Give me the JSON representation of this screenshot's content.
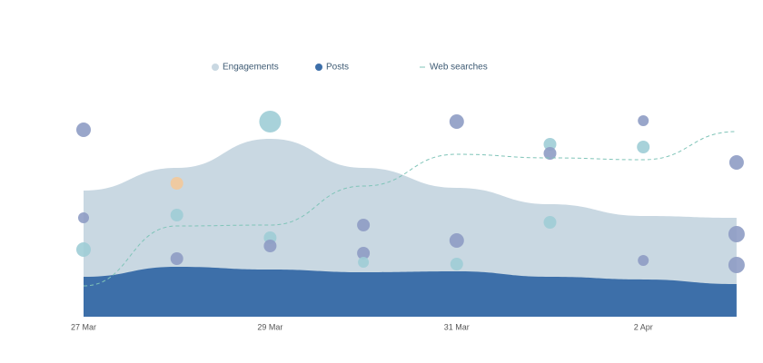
{
  "chart_data": {
    "type": "area",
    "categories": [
      "27 Mar",
      null,
      "29 Mar",
      null,
      "31 Mar",
      null,
      "2 Apr",
      null
    ],
    "ylim": [
      0,
      250
    ],
    "legend": "top",
    "series": [
      {
        "name": "Engagements",
        "type": "area",
        "color": "#c9d8e2",
        "values": [
          139,
          164,
          196,
          164,
          142,
          124,
          111,
          109
        ]
      },
      {
        "name": "Posts",
        "type": "area",
        "color": "#3d6fa9",
        "values": [
          44,
          55,
          52,
          49,
          50,
          44,
          41,
          36
        ]
      },
      {
        "name": "Web searches",
        "type": "line",
        "dashed": true,
        "color": "#7fc4b8",
        "values": [
          34,
          100,
          101,
          144,
          179,
          175,
          173,
          204
        ]
      }
    ],
    "bubbles": {
      "y": [
        [
          206,
          109,
          74
        ],
        [
          147,
          112,
          64
        ],
        [
          215,
          87,
          78
        ],
        [
          101,
          70,
          60
        ],
        [
          215,
          84,
          58
        ],
        [
          190,
          180,
          104
        ],
        [
          216,
          187,
          62
        ],
        [
          170,
          91,
          57
        ]
      ],
      "size": [
        [
          8,
          6,
          8
        ],
        [
          7,
          7,
          7
        ],
        [
          12,
          7,
          7
        ],
        [
          7,
          7,
          6
        ],
        [
          8,
          8,
          7
        ],
        [
          7,
          7,
          7
        ],
        [
          6,
          7,
          6
        ],
        [
          8,
          9,
          9
        ]
      ],
      "color": [
        [
          "#8e9cc4",
          "#8e9cc4",
          "#9fcdd6"
        ],
        [
          "#f3c99a",
          "#9fcdd6",
          "#8e9cc4"
        ],
        [
          "#9fcdd6",
          "#9fcdd6",
          "#8e9cc4"
        ],
        [
          "#8e9cc4",
          "#8e9cc4",
          "#9fcdd6"
        ],
        [
          "#8e9cc4",
          "#8e9cc4",
          "#9fcdd6"
        ],
        [
          "#9fcdd6",
          "#8e9cc4",
          "#9fcdd6"
        ],
        [
          "#8e9cc4",
          "#9fcdd6",
          "#8e9cc4"
        ],
        [
          "#8e9cc4",
          "#8e9cc4",
          "#8e9cc4"
        ]
      ]
    }
  }
}
